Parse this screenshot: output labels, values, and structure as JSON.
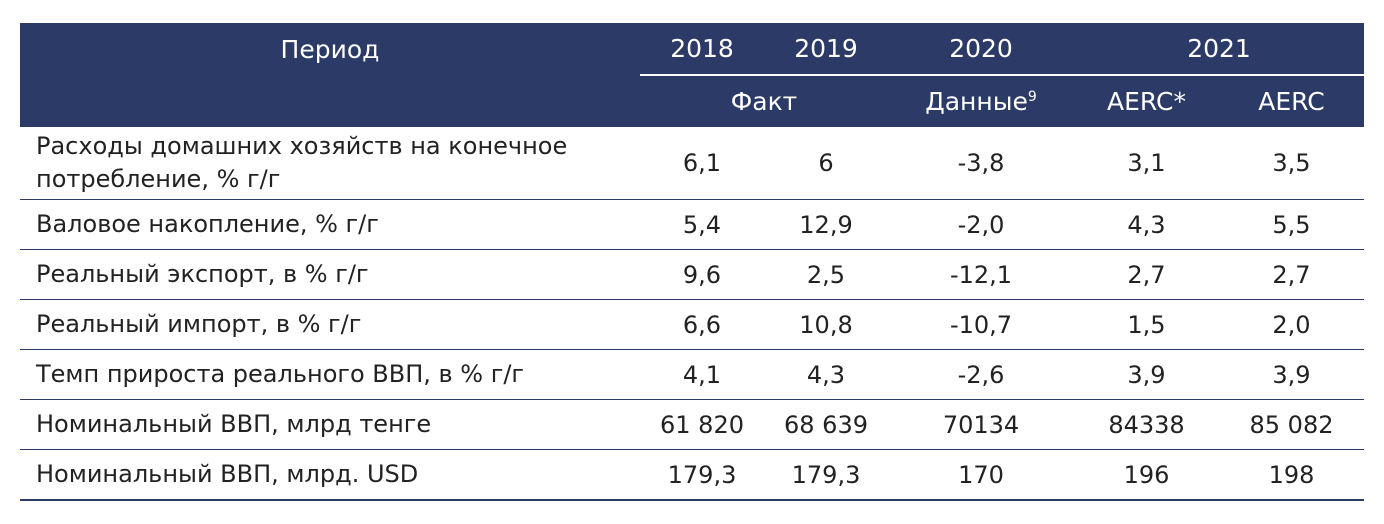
{
  "header": {
    "period_label": "Период",
    "years": [
      "2018",
      "2019",
      "2020",
      "2021"
    ],
    "sub": {
      "fact": "Факт",
      "data": "Данные",
      "data_sup": "9",
      "aerc_star": "AERC*",
      "aerc": "AERC"
    }
  },
  "rows": [
    {
      "label": "Расходы домашних хозяйств на конечное потребление, % г/г",
      "values": [
        "6,1",
        "6",
        "-3,8",
        "3,1",
        "3,5"
      ]
    },
    {
      "label": "Валовое накопление, % г/г",
      "values": [
        "5,4",
        "12,9",
        "-2,0",
        "4,3",
        "5,5"
      ]
    },
    {
      "label": "Реальный экспорт, в % г/г",
      "values": [
        "9,6",
        "2,5",
        "-12,1",
        "2,7",
        "2,7"
      ]
    },
    {
      "label": "Реальный импорт, в % г/г",
      "values": [
        "6,6",
        "10,8",
        "-10,7",
        "1,5",
        "2,0"
      ]
    },
    {
      "label": "Темп прироста реального ВВП, в % г/г",
      "values": [
        "4,1",
        "4,3",
        "-2,6",
        "3,9",
        "3,9"
      ]
    },
    {
      "label": "Номинальный ВВП, млрд тенге",
      "values": [
        "61 820",
        "68 639",
        "70134",
        "84338",
        "85 082"
      ]
    },
    {
      "label": "Номинальный ВВП, млрд. USD",
      "values": [
        "179,3",
        "179,3",
        "170",
        "196",
        "198"
      ]
    }
  ],
  "colors": {
    "header_bg": "#2b3a67",
    "header_text": "#ffffff",
    "row_border": "#2b3a67"
  }
}
